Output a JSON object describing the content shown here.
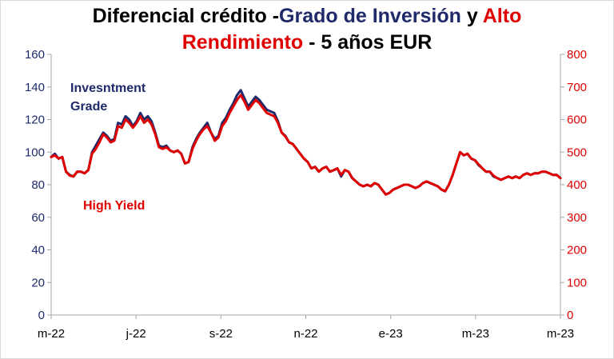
{
  "chart_data": {
    "type": "line",
    "title": {
      "p1": "Diferencial crédito -",
      "p2": "Grado de Inversión",
      "p3": " y ",
      "p4": "Alto",
      "p5": "Rendimiento",
      "p6": " - 5 años EUR"
    },
    "x_ticks": [
      "m-22",
      "j-22",
      "s-22",
      "n-22",
      "e-23",
      "m-23",
      "m-23"
    ],
    "y_left": {
      "min": 0,
      "max": 160,
      "step": 20,
      "ticks": [
        "0",
        "20",
        "40",
        "60",
        "80",
        "100",
        "120",
        "140",
        "160"
      ]
    },
    "y_right": {
      "min": 0,
      "max": 800,
      "step": 100,
      "ticks": [
        "0",
        "100",
        "200",
        "300",
        "400",
        "500",
        "600",
        "700",
        "800"
      ]
    },
    "legend_labels": {
      "ig_line1": "Invesntment",
      "ig_line2": "Grade",
      "hy": "High Yield"
    },
    "colors": {
      "ig": "#1f2a6b",
      "hy": "#e00000",
      "axis": "#a6a6a6"
    },
    "series": [
      {
        "name": "Invesntment Grade",
        "axis": "left",
        "color": "#1f2a6b",
        "values": [
          97,
          99,
          96,
          97,
          88,
          86,
          85,
          88,
          88,
          87,
          89,
          100,
          104,
          108,
          112,
          110,
          107,
          108,
          118,
          117,
          122,
          120,
          116,
          119,
          124,
          120,
          122,
          119,
          112,
          104,
          103,
          104,
          101,
          100,
          101,
          99,
          93,
          94,
          103,
          108,
          112,
          115,
          118,
          112,
          108,
          110,
          118,
          121,
          126,
          130,
          135,
          138,
          133,
          128,
          131,
          134,
          132,
          129,
          126,
          125,
          124,
          119,
          112,
          110,
          106,
          105,
          102,
          99,
          96,
          94,
          90,
          91,
          88,
          90,
          91,
          88,
          89,
          90,
          85,
          89,
          88,
          84,
          82,
          80,
          79,
          80,
          79,
          81,
          80,
          77,
          74,
          75,
          77,
          78,
          79,
          80,
          80,
          79,
          78,
          79,
          81,
          82,
          81,
          80,
          79,
          77,
          76,
          80,
          86,
          93,
          100,
          98,
          99,
          96,
          95,
          92,
          90,
          88,
          88,
          85,
          84,
          83,
          84,
          85,
          84,
          85,
          84,
          86,
          87,
          86,
          87,
          87,
          88,
          88,
          87,
          86,
          86,
          84
        ]
      },
      {
        "name": "High Yield",
        "axis": "right",
        "color": "#e00000",
        "values": [
          485,
          490,
          480,
          485,
          440,
          428,
          425,
          440,
          440,
          435,
          445,
          495,
          510,
          530,
          555,
          545,
          530,
          535,
          580,
          575,
          600,
          590,
          575,
          590,
          610,
          590,
          600,
          585,
          555,
          515,
          510,
          515,
          505,
          500,
          505,
          495,
          465,
          470,
          510,
          535,
          555,
          570,
          580,
          560,
          535,
          545,
          580,
          595,
          620,
          640,
          660,
          675,
          655,
          630,
          645,
          660,
          650,
          635,
          620,
          615,
          610,
          590,
          560,
          548,
          530,
          525,
          510,
          495,
          480,
          470,
          450,
          455,
          440,
          450,
          455,
          440,
          445,
          450,
          430,
          445,
          440,
          420,
          410,
          400,
          395,
          400,
          395,
          405,
          400,
          385,
          370,
          375,
          385,
          390,
          395,
          400,
          400,
          395,
          390,
          395,
          405,
          410,
          405,
          400,
          395,
          385,
          380,
          400,
          430,
          465,
          500,
          490,
          495,
          480,
          475,
          462,
          450,
          440,
          440,
          428,
          420,
          415,
          420,
          425,
          420,
          425,
          420,
          430,
          435,
          430,
          435,
          435,
          440,
          440,
          435,
          430,
          430,
          420
        ]
      }
    ]
  }
}
